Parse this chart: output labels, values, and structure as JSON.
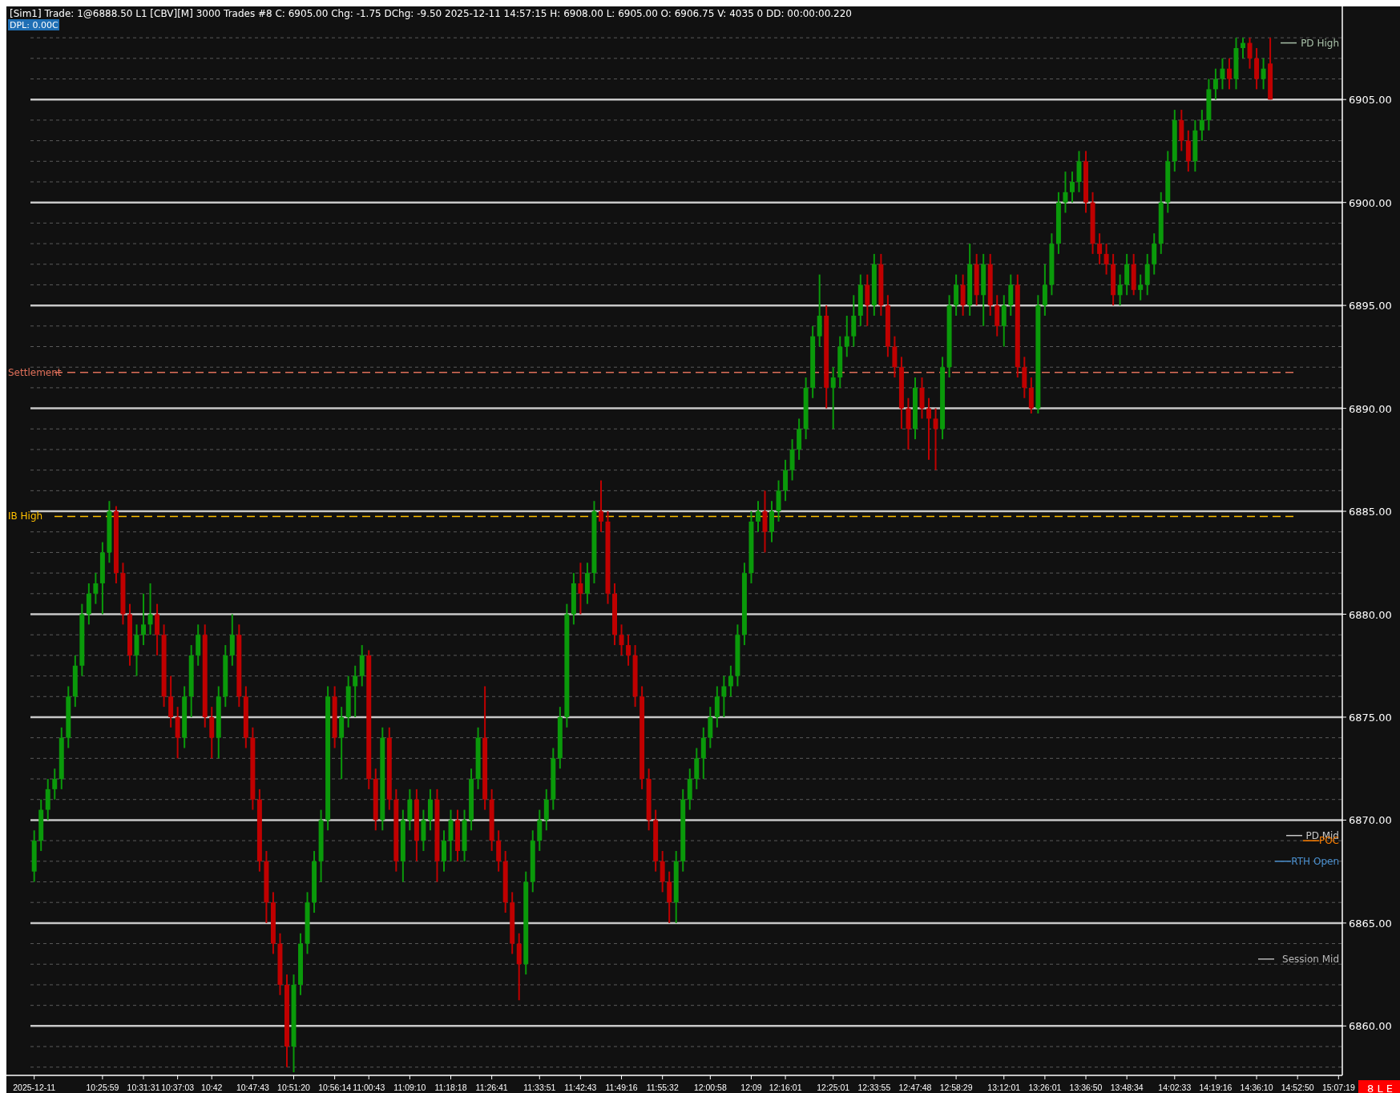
{
  "chart_data": {
    "type": "candlestick",
    "title": "[Sim1]  Trade: 1@6888.50  L1  [CBV][M]  3000 Trades #8  C: 6905.00  Chg: -1.75  DChg: -9.50  2025-12-11 14:57:15 H: 6908.00 L: 6905.00 O: 6906.75 V: 4035 0 DD: 00:00:00.220",
    "subtitle": "DPL: 0.00C",
    "categories": [
      "2025-12-11",
      null,
      null,
      null,
      null,
      null,
      null,
      null,
      null,
      null,
      "10:25:59",
      null,
      null,
      null,
      null,
      null,
      "10:31:31",
      null,
      null,
      null,
      null,
      "10:37:03",
      null,
      null,
      null,
      null,
      "10:42",
      null,
      null,
      null,
      null,
      null,
      "10:47:43",
      null,
      null,
      null,
      null,
      null,
      "10:51:20",
      null,
      null,
      null,
      null,
      null,
      "10:56:14",
      null,
      null,
      null,
      null,
      "11:00:43",
      null,
      null,
      null,
      null,
      null,
      "11:09:10",
      null,
      null,
      null,
      null,
      null,
      "11:18:18",
      null,
      null,
      null,
      null,
      null,
      "11:26:41",
      null,
      null,
      null,
      null,
      null,
      null,
      "11:33:51",
      null,
      null,
      null,
      null,
      null,
      "11:42:43",
      null,
      null,
      null,
      null,
      null,
      "11:49:16",
      null,
      null,
      null,
      null,
      null,
      "11:55:32",
      null,
      null,
      null,
      null,
      null,
      null,
      "12:00:58",
      null,
      null,
      null,
      null,
      null,
      "12:09",
      null,
      null,
      null,
      null,
      "12:16:01",
      null,
      null,
      null,
      null,
      null,
      null,
      "12:25:01",
      null,
      null,
      null,
      null,
      null,
      "12:33:55",
      null,
      null,
      null,
      null,
      null,
      "12:47:48",
      null,
      null,
      null,
      null,
      null,
      "12:58:29",
      null,
      null,
      null,
      null,
      null,
      null,
      "13:12:01",
      null,
      null,
      null,
      null,
      null,
      "13:26:01",
      null,
      null,
      null,
      null,
      null,
      "13:36:50",
      null,
      null,
      null,
      null,
      null,
      "13:48:34",
      null,
      null,
      null,
      null,
      null,
      null,
      "14:02:33",
      null,
      null,
      null,
      null,
      null,
      "14:19:16",
      null,
      null,
      null,
      null,
      null,
      "14:36:10",
      null,
      null,
      null,
      null,
      null,
      "14:52:50",
      null,
      null,
      null,
      null,
      null,
      "15:07:19"
    ],
    "ohlc": [
      [
        6867.5,
        6869.5,
        6867,
        6869
      ],
      [
        6869,
        6871,
        6868.5,
        6870.5
      ],
      [
        6870.5,
        6872,
        6870,
        6871.5
      ],
      [
        6871.5,
        6872.5,
        6871,
        6872
      ],
      [
        6872,
        6874.5,
        6871.5,
        6874
      ],
      [
        6874,
        6876.5,
        6873.5,
        6876
      ],
      [
        6876,
        6878,
        6875.5,
        6877.5
      ],
      [
        6877.5,
        6880.5,
        6877,
        6880
      ],
      [
        6880,
        6881.5,
        6879.5,
        6881
      ],
      [
        6881,
        6882,
        6880.5,
        6881.5
      ],
      [
        6881.5,
        6883.5,
        6880,
        6883
      ],
      [
        6883,
        6885.5,
        6882.5,
        6885
      ],
      [
        6885,
        6885.25,
        6881.5,
        6882
      ],
      [
        6882,
        6882.5,
        6879.5,
        6880
      ],
      [
        6880,
        6880.5,
        6877.5,
        6878
      ],
      [
        6878,
        6879.5,
        6877,
        6879
      ],
      [
        6879,
        6881,
        6878.5,
        6879.5
      ],
      [
        6879.5,
        6881.5,
        6879,
        6880
      ],
      [
        6880,
        6880.5,
        6878,
        6879
      ],
      [
        6879,
        6879.5,
        6875.5,
        6876
      ],
      [
        6876,
        6877,
        6874.5,
        6875
      ],
      [
        6875,
        6875.5,
        6873,
        6874
      ],
      [
        6874,
        6876.5,
        6873.5,
        6876
      ],
      [
        6876,
        6878.5,
        6875,
        6878
      ],
      [
        6878,
        6879.5,
        6877.5,
        6879
      ],
      [
        6879,
        6879.5,
        6874.5,
        6875
      ],
      [
        6875,
        6875.5,
        6873,
        6874
      ],
      [
        6874,
        6876.5,
        6873,
        6876
      ],
      [
        6876,
        6878.5,
        6875.5,
        6878
      ],
      [
        6878,
        6880,
        6877.5,
        6879
      ],
      [
        6879,
        6879.5,
        6875.5,
        6876
      ],
      [
        6876,
        6876.5,
        6873.5,
        6874
      ],
      [
        6874,
        6874.5,
        6870.5,
        6871
      ],
      [
        6871,
        6871.5,
        6867.5,
        6868
      ],
      [
        6868,
        6868.5,
        6865,
        6866
      ],
      [
        6866,
        6866.5,
        6863.5,
        6864
      ],
      [
        6864,
        6864.5,
        6861.5,
        6862
      ],
      [
        6862,
        6862.5,
        6858,
        6859
      ],
      [
        6859,
        6862.5,
        6857.75,
        6862
      ],
      [
        6862,
        6864.5,
        6861.5,
        6864
      ],
      [
        6864,
        6866.5,
        6863.5,
        6866
      ],
      [
        6866,
        6868.5,
        6865.5,
        6868
      ],
      [
        6868,
        6870.5,
        6867,
        6870
      ],
      [
        6870,
        6876.5,
        6869.5,
        6876
      ],
      [
        6876,
        6876.5,
        6873.5,
        6874
      ],
      [
        6874,
        6875.5,
        6872,
        6875
      ],
      [
        6875,
        6877,
        6874.5,
        6876.5
      ],
      [
        6876.5,
        6877.5,
        6875,
        6877
      ],
      [
        6877,
        6878.5,
        6876.5,
        6878
      ],
      [
        6878,
        6878.25,
        6871.5,
        6872
      ],
      [
        6872,
        6872.5,
        6869.5,
        6870
      ],
      [
        6870,
        6874.5,
        6869.5,
        6874
      ],
      [
        6874,
        6874.5,
        6870.5,
        6871
      ],
      [
        6871,
        6871.5,
        6867.5,
        6868
      ],
      [
        6868,
        6870.5,
        6867,
        6870
      ],
      [
        6870,
        6871.5,
        6869.5,
        6871
      ],
      [
        6871,
        6871.5,
        6868,
        6869
      ],
      [
        6869,
        6870.5,
        6868.5,
        6870
      ],
      [
        6870,
        6871.5,
        6869.5,
        6871
      ],
      [
        6871,
        6871.5,
        6867,
        6868
      ],
      [
        6868,
        6869.5,
        6867.5,
        6869
      ],
      [
        6869,
        6870.5,
        6868,
        6870
      ],
      [
        6870,
        6870.5,
        6868,
        6868.5
      ],
      [
        6868.5,
        6870.5,
        6868,
        6870
      ],
      [
        6870,
        6872.5,
        6869.5,
        6872
      ],
      [
        6872,
        6874.5,
        6871.5,
        6874
      ],
      [
        6874,
        6876.5,
        6870.5,
        6871
      ],
      [
        6871,
        6871.5,
        6868.5,
        6869
      ],
      [
        6869,
        6869.5,
        6867.5,
        6868
      ],
      [
        6868,
        6868.5,
        6865.5,
        6866
      ],
      [
        6866,
        6866.5,
        6863.5,
        6864
      ],
      [
        6864,
        6864.5,
        6861.25,
        6863
      ],
      [
        6863,
        6867.5,
        6862.5,
        6867
      ],
      [
        6867,
        6869.5,
        6866.5,
        6869
      ],
      [
        6869,
        6870.5,
        6868.5,
        6870
      ],
      [
        6870,
        6871.5,
        6869.5,
        6871
      ],
      [
        6871,
        6873.5,
        6870.5,
        6873
      ],
      [
        6873,
        6875.5,
        6872.5,
        6875
      ],
      [
        6875,
        6880.5,
        6874.5,
        6880
      ],
      [
        6880,
        6882,
        6879.5,
        6881.5
      ],
      [
        6881.5,
        6882.5,
        6880,
        6881
      ],
      [
        6881,
        6882.5,
        6880.5,
        6882
      ],
      [
        6882,
        6885.5,
        6881.5,
        6885
      ],
      [
        6885,
        6886.5,
        6884,
        6884.5
      ],
      [
        6884.5,
        6885,
        6880.5,
        6881
      ],
      [
        6881,
        6881.5,
        6878.5,
        6879
      ],
      [
        6879,
        6879.5,
        6878,
        6878.5
      ],
      [
        6878.5,
        6879,
        6877.5,
        6878
      ],
      [
        6878,
        6878.5,
        6875.5,
        6876
      ],
      [
        6876,
        6876.5,
        6871.5,
        6872
      ],
      [
        6872,
        6872.5,
        6869.5,
        6870
      ],
      [
        6870,
        6870.5,
        6867.5,
        6868
      ],
      [
        6868,
        6868.5,
        6866.5,
        6867
      ],
      [
        6867,
        6867.5,
        6865,
        6866
      ],
      [
        6866,
        6868.5,
        6865,
        6868
      ],
      [
        6868,
        6871.5,
        6867.5,
        6871
      ],
      [
        6871,
        6872.5,
        6870.5,
        6872
      ],
      [
        6872,
        6873.5,
        6871.5,
        6873
      ],
      [
        6873,
        6874.5,
        6872,
        6874
      ],
      [
        6874,
        6875.5,
        6873.5,
        6875
      ],
      [
        6875,
        6876.5,
        6874.5,
        6876
      ],
      [
        6876,
        6877,
        6875,
        6876.5
      ],
      [
        6876.5,
        6877.5,
        6876,
        6877
      ],
      [
        6877,
        6879.5,
        6876.5,
        6879
      ],
      [
        6879,
        6882.5,
        6878.5,
        6882
      ],
      [
        6882,
        6885,
        6881.5,
        6884.5
      ],
      [
        6884.5,
        6885.5,
        6884,
        6885
      ],
      [
        6885,
        6886,
        6883,
        6884
      ],
      [
        6884,
        6885.5,
        6883.5,
        6885
      ],
      [
        6885,
        6886.5,
        6884.5,
        6886
      ],
      [
        6886,
        6887.5,
        6885.5,
        6887
      ],
      [
        6887,
        6888.5,
        6886.5,
        6888
      ],
      [
        6888,
        6889.5,
        6887.5,
        6889
      ],
      [
        6889,
        6891.5,
        6888.5,
        6891
      ],
      [
        6891,
        6894,
        6890.5,
        6893.5
      ],
      [
        6893.5,
        6896.5,
        6893,
        6894.5
      ],
      [
        6894.5,
        6895,
        6890,
        6891
      ],
      [
        6891,
        6892,
        6889,
        6891.5
      ],
      [
        6891.5,
        6893.5,
        6891,
        6893
      ],
      [
        6893,
        6894.5,
        6892.5,
        6893.5
      ],
      [
        6893.5,
        6895.5,
        6893,
        6894.5
      ],
      [
        6894.5,
        6896.5,
        6894,
        6896
      ],
      [
        6896,
        6896.5,
        6894,
        6895
      ],
      [
        6895,
        6897.5,
        6894.5,
        6897
      ],
      [
        6897,
        6897.5,
        6894.5,
        6895
      ],
      [
        6895,
        6895.5,
        6892.5,
        6893
      ],
      [
        6893,
        6893.5,
        6891.5,
        6892
      ],
      [
        6892,
        6892.5,
        6889,
        6890
      ],
      [
        6890,
        6890.5,
        6888,
        6889
      ],
      [
        6889,
        6891.5,
        6888.5,
        6891
      ],
      [
        6891,
        6891.5,
        6889.5,
        6890
      ],
      [
        6890,
        6890.5,
        6887.5,
        6889.5
      ],
      [
        6889.5,
        6890,
        6887,
        6889
      ],
      [
        6889,
        6892.5,
        6888.5,
        6892
      ],
      [
        6892,
        6895.5,
        6891.5,
        6895
      ],
      [
        6895,
        6896.5,
        6894.5,
        6896
      ],
      [
        6896,
        6896.5,
        6894.5,
        6895
      ],
      [
        6895,
        6898,
        6894.5,
        6897
      ],
      [
        6897,
        6897.5,
        6895,
        6895.5
      ],
      [
        6895.5,
        6897.5,
        6894,
        6897
      ],
      [
        6897,
        6897.5,
        6894.5,
        6895
      ],
      [
        6895,
        6895.5,
        6893.5,
        6894
      ],
      [
        6894,
        6895.5,
        6893,
        6895
      ],
      [
        6895,
        6896.5,
        6894.5,
        6896
      ],
      [
        6896,
        6896.5,
        6891.5,
        6892
      ],
      [
        6892,
        6892.5,
        6890.5,
        6891
      ],
      [
        6891,
        6891.5,
        6889.75,
        6890
      ],
      [
        6890,
        6895.5,
        6889.75,
        6895
      ],
      [
        6895,
        6897,
        6894.5,
        6896
      ],
      [
        6896,
        6898.5,
        6895.5,
        6898
      ],
      [
        6898,
        6900.5,
        6897.5,
        6900
      ],
      [
        6900,
        6901.5,
        6899.5,
        6900.5
      ],
      [
        6900.5,
        6901.5,
        6900,
        6901
      ],
      [
        6901,
        6902.5,
        6900.5,
        6902
      ],
      [
        6902,
        6902.5,
        6899.5,
        6900
      ],
      [
        6900,
        6900.5,
        6897.5,
        6898
      ],
      [
        6898,
        6898.5,
        6897,
        6897.5
      ],
      [
        6897.5,
        6898,
        6896.5,
        6897
      ],
      [
        6897,
        6897.5,
        6895,
        6895.5
      ],
      [
        6895.5,
        6896.5,
        6895,
        6896
      ],
      [
        6896,
        6897.5,
        6895.5,
        6897
      ],
      [
        6897,
        6897.5,
        6895.5,
        6895.75
      ],
      [
        6895.75,
        6896.5,
        6895.25,
        6896
      ],
      [
        6896,
        6897.5,
        6895.5,
        6897
      ],
      [
        6897,
        6898.5,
        6896.5,
        6898
      ],
      [
        6898,
        6900.5,
        6897.5,
        6900
      ],
      [
        6900,
        6902.5,
        6899.5,
        6902
      ],
      [
        6902,
        6904.5,
        6901.5,
        6904
      ],
      [
        6904,
        6904.5,
        6902.5,
        6903
      ],
      [
        6903,
        6903.5,
        6901.5,
        6902
      ],
      [
        6902,
        6904,
        6901.5,
        6903.5
      ],
      [
        6903.5,
        6904.5,
        6903,
        6904
      ],
      [
        6904,
        6906,
        6903.5,
        6905.5
      ],
      [
        6905.5,
        6906.5,
        6905,
        6906
      ],
      [
        6906,
        6907,
        6905.5,
        6906.5
      ],
      [
        6906.5,
        6907,
        6905.5,
        6906
      ],
      [
        6906,
        6908,
        6905.5,
        6907.5
      ],
      [
        6907.5,
        6908,
        6907,
        6907.75
      ],
      [
        6907.75,
        6908,
        6906.5,
        6907
      ],
      [
        6907,
        6907.5,
        6905.5,
        6906
      ],
      [
        6906,
        6907,
        6905.5,
        6906.5
      ],
      [
        6906.75,
        6908,
        6905,
        6905
      ],
      null,
      null,
      null,
      null,
      null,
      null,
      null,
      null,
      null,
      null
    ],
    "colors": [
      "#0a9a0a",
      "#0a9a0a",
      "#0a9a0a",
      "#0a9a0a",
      "#0a9a0a",
      "#0a9a0a",
      "#0a9a0a",
      "#0a9a0a",
      "#0a9a0a",
      "#0a9a0a",
      "#0a9a0a",
      "#0a9a0a",
      "#c00000",
      "#c00000",
      "#c00000",
      "#0a9a0a",
      "#0a9a0a",
      "#0a9a0a",
      "#c00000",
      "#c00000",
      "#c00000",
      "#c00000",
      "#0a9a0a",
      "#0a9a0a",
      "#0a9a0a",
      "#c00000",
      "#c00000",
      "#0a9a0a",
      "#0a9a0a",
      "#0a9a0a",
      "#c00000",
      "#c00000",
      "#c00000",
      "#c00000",
      "#c00000",
      "#c00000",
      "#c00000",
      "#c00000",
      "#0a9a0a",
      "#0a9a0a",
      "#0a9a0a",
      "#0a9a0a",
      "#0a9a0a",
      "#0a9a0a",
      "#c00000",
      "#0a9a0a",
      "#0a9a0a",
      "#0a9a0a",
      "#0a9a0a",
      "#c00000",
      "#c00000",
      "#0a9a0a",
      "#c00000",
      "#c00000",
      "#0a9a0a",
      "#0a9a0a",
      "#c00000",
      "#0a9a0a",
      "#0a9a0a",
      "#c00000",
      "#0a9a0a",
      "#0a9a0a",
      "#c00000",
      "#0a9a0a",
      "#0a9a0a",
      "#0a9a0a",
      "#c00000",
      "#c00000",
      "#c00000",
      "#c00000",
      "#c00000",
      "#c00000",
      "#0a9a0a",
      "#0a9a0a",
      "#0a9a0a",
      "#0a9a0a",
      "#0a9a0a",
      "#0a9a0a",
      "#0a9a0a",
      "#0a9a0a",
      "#c00000",
      "#0a9a0a",
      "#0a9a0a",
      "#c00000",
      "#c00000",
      "#c00000",
      "#c00000",
      "#c00000",
      "#c00000",
      "#c00000",
      "#c00000",
      "#c00000",
      "#c00000",
      "#c00000",
      "#0a9a0a",
      "#0a9a0a",
      "#0a9a0a",
      "#0a9a0a",
      "#0a9a0a",
      "#0a9a0a",
      "#0a9a0a",
      "#0a9a0a",
      "#0a9a0a",
      "#0a9a0a",
      "#0a9a0a",
      "#0a9a0a",
      "#0a9a0a",
      "#c00000",
      "#0a9a0a",
      "#0a9a0a",
      "#0a9a0a",
      "#0a9a0a",
      "#0a9a0a",
      "#0a9a0a",
      "#0a9a0a",
      "#0a9a0a",
      "#c00000",
      "#0a9a0a",
      "#0a9a0a",
      "#0a9a0a",
      "#0a9a0a",
      "#0a9a0a",
      "#c00000",
      "#0a9a0a",
      "#c00000",
      "#c00000",
      "#c00000",
      "#c00000",
      "#c00000",
      "#0a9a0a",
      "#c00000",
      "#c00000",
      "#c00000",
      "#0a9a0a",
      "#0a9a0a",
      "#0a9a0a",
      "#c00000",
      "#0a9a0a",
      "#c00000",
      "#0a9a0a",
      "#c00000",
      "#c00000",
      "#0a9a0a",
      "#0a9a0a",
      "#c00000",
      "#c00000",
      "#c00000",
      "#0a9a0a",
      "#0a9a0a",
      "#0a9a0a",
      "#0a9a0a",
      "#0a9a0a",
      "#0a9a0a",
      "#0a9a0a",
      "#c00000",
      "#c00000",
      "#c00000",
      "#c00000",
      "#c00000",
      "#0a9a0a",
      "#0a9a0a",
      "#c00000",
      "#0a9a0a",
      "#0a9a0a",
      "#0a9a0a",
      "#0a9a0a",
      "#0a9a0a",
      "#0a9a0a",
      "#c00000",
      "#c00000",
      "#0a9a0a",
      "#0a9a0a",
      "#0a9a0a",
      "#0a9a0a",
      "#0a9a0a",
      "#c00000",
      "#0a9a0a",
      "#0a9a0a",
      "#c00000",
      "#c00000",
      "#0a9a0a",
      "#c00000",
      null,
      null,
      null,
      null,
      null,
      null,
      null,
      null,
      null,
      null
    ],
    "ylim": [
      6857.6,
      6908.2
    ],
    "yticks": [
      {
        "value": 6858,
        "label": null
      },
      {
        "value": 6859,
        "label": null
      },
      {
        "value": 6860,
        "label": "6860.00"
      },
      {
        "value": 6861,
        "label": null
      },
      {
        "value": 6862,
        "label": null
      },
      {
        "value": 6863,
        "label": null
      },
      {
        "value": 6864,
        "label": null
      },
      {
        "value": 6865,
        "label": "6865.00"
      },
      {
        "value": 6866,
        "label": null
      },
      {
        "value": 6867,
        "label": null
      },
      {
        "value": 6868,
        "label": null
      },
      {
        "value": 6869,
        "label": null
      },
      {
        "value": 6870,
        "label": "6870.00"
      },
      {
        "value": 6871,
        "label": null
      },
      {
        "value": 6872,
        "label": null
      },
      {
        "value": 6873,
        "label": null
      },
      {
        "value": 6874,
        "label": null
      },
      {
        "value": 6875,
        "label": "6875.00"
      },
      {
        "value": 6876,
        "label": null
      },
      {
        "value": 6877,
        "label": null
      },
      {
        "value": 6878,
        "label": null
      },
      {
        "value": 6879,
        "label": null
      },
      {
        "value": 6880,
        "label": "6880.00"
      },
      {
        "value": 6881,
        "label": null
      },
      {
        "value": 6882,
        "label": null
      },
      {
        "value": 6883,
        "label": null
      },
      {
        "value": 6884,
        "label": null
      },
      {
        "value": 6885,
        "label": "6885.00"
      },
      {
        "value": 6886,
        "label": null
      },
      {
        "value": 6887,
        "label": null
      },
      {
        "value": 6888,
        "label": null
      },
      {
        "value": 6889,
        "label": null
      },
      {
        "value": 6890,
        "label": "6890.00"
      },
      {
        "value": 6891,
        "label": null
      },
      {
        "value": 6892,
        "label": null
      },
      {
        "value": 6893,
        "label": null
      },
      {
        "value": 6894,
        "label": null
      },
      {
        "value": 6895,
        "label": "6895.00"
      },
      {
        "value": 6896,
        "label": null
      },
      {
        "value": 6897,
        "label": null
      },
      {
        "value": 6898,
        "label": null
      },
      {
        "value": 6899,
        "label": null
      },
      {
        "value": 6900,
        "label": "6900.00"
      },
      {
        "value": 6901,
        "label": null
      },
      {
        "value": 6902,
        "label": null
      },
      {
        "value": 6903,
        "label": null
      },
      {
        "value": 6904,
        "label": null
      },
      {
        "value": 6905,
        "label": "6905.00"
      },
      {
        "value": 6906,
        "label": null
      },
      {
        "value": 6907,
        "label": null
      },
      {
        "value": 6908,
        "label": null
      }
    ],
    "grid": true,
    "ref_lines": [
      {
        "axis": "y",
        "value": 6891.75,
        "label": "Settlement",
        "color": "#e0705a",
        "line_style": "dashed"
      },
      {
        "axis": "y",
        "value": 6884.75,
        "label": "IB High",
        "color": "#ffc000",
        "line_style": "dashed"
      },
      {
        "axis": "y",
        "value": 6907.75,
        "label": "PD High",
        "color": "#a8c0a8"
      },
      {
        "axis": "y",
        "value": 6869.25,
        "label": "PD Mid",
        "color": "#c8c8c8"
      },
      {
        "axis": "y",
        "value": 6869,
        "label": "POC",
        "color": "#ff8000"
      },
      {
        "axis": "y",
        "value": 6868,
        "label": "RTH Open",
        "color": "#4a90d0"
      },
      {
        "axis": "y",
        "value": 6863.25,
        "label": "Session Mid",
        "color": "#b8b8b8"
      }
    ],
    "annotations": [
      "8 L E"
    ]
  }
}
